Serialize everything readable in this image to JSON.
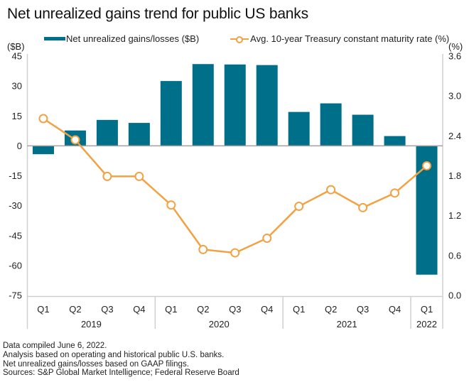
{
  "chart_data": {
    "type": "bar",
    "title": "Net unrealized gains trend for public US banks",
    "categories": [
      "Q1",
      "Q2",
      "Q3",
      "Q4",
      "Q1",
      "Q2",
      "Q3",
      "Q4",
      "Q1",
      "Q2",
      "Q3",
      "Q4",
      "Q1"
    ],
    "year_groups": [
      {
        "label": "2019",
        "count": 4
      },
      {
        "label": "2020",
        "count": 4
      },
      {
        "label": "2021",
        "count": 4
      },
      {
        "label": "2022",
        "count": 1
      }
    ],
    "series": [
      {
        "name": "Net unrealized gains/losses ($B)",
        "type": "bar",
        "axis": "left",
        "color": "#006f8a",
        "values": [
          -4.2,
          7.7,
          13.0,
          11.5,
          32.5,
          41.0,
          40.8,
          40.5,
          17.0,
          21.3,
          15.6,
          4.9,
          -64.6
        ]
      },
      {
        "name": "Avg. 10-year Treasury constant maturity rate (%)",
        "type": "line",
        "axis": "right",
        "color": "#f2a243",
        "values": [
          2.66,
          2.34,
          1.79,
          1.79,
          1.36,
          0.69,
          0.64,
          0.86,
          1.34,
          1.59,
          1.32,
          1.54,
          1.95
        ]
      }
    ],
    "ylabel_left": "($B)",
    "ylabel_right": "(%)",
    "ylim_left": [
      -75,
      45
    ],
    "ylim_right": [
      0,
      3.6
    ],
    "yticks_left": [
      "45",
      "30",
      "15",
      "0",
      "-15",
      "-30",
      "-45",
      "-60",
      "-75"
    ],
    "yticks_right": [
      "3.6",
      "3.0",
      "2.4",
      "1.8",
      "1.2",
      "0.6",
      "0.0"
    ],
    "grid": false,
    "legend_position": "top"
  },
  "footer": {
    "lines": [
      "Data compiled June 6, 2022.",
      "Analysis based on operating and historical public U.S. banks.",
      "Net unrealized gains/losses based on GAAP filings.",
      "Sources: S&P Global Market Intelligence; Federal Reserve Board"
    ]
  }
}
